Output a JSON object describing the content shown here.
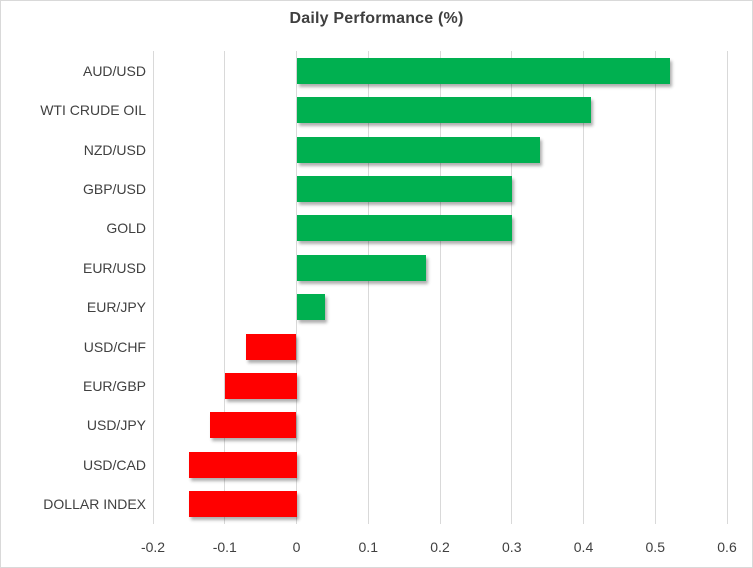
{
  "chart_data": {
    "type": "bar",
    "orientation": "horizontal",
    "title": "Daily Performance (%)",
    "categories": [
      "AUD/USD",
      "WTI CRUDE OIL",
      "NZD/USD",
      "GBP/USD",
      "GOLD",
      "EUR/USD",
      "EUR/JPY",
      "USD/CHF",
      "EUR/GBP",
      "USD/JPY",
      "USD/CAD",
      "DOLLAR INDEX"
    ],
    "values": [
      0.52,
      0.41,
      0.34,
      0.3,
      0.3,
      0.18,
      0.04,
      -0.07,
      -0.1,
      -0.12,
      -0.15,
      -0.15
    ],
    "xlim": [
      -0.2,
      0.6
    ],
    "xticks": [
      -0.2,
      -0.1,
      0,
      0.1,
      0.2,
      0.3,
      0.4,
      0.5,
      0.6
    ],
    "xtick_labels": [
      "-0.2",
      "-0.1",
      "0",
      "0.1",
      "0.2",
      "0.3",
      "0.4",
      "0.5",
      "0.6"
    ],
    "xlabel": "",
    "ylabel": "",
    "grid": "vertical",
    "legend": "none",
    "colors": {
      "positive": "#00B050",
      "negative": "#FF0000",
      "gridline": "#D9D9D9",
      "border": "#D9D9D9",
      "text": "#404040",
      "title_text": "#3F3F3F",
      "background": "#FFFFFF"
    }
  }
}
